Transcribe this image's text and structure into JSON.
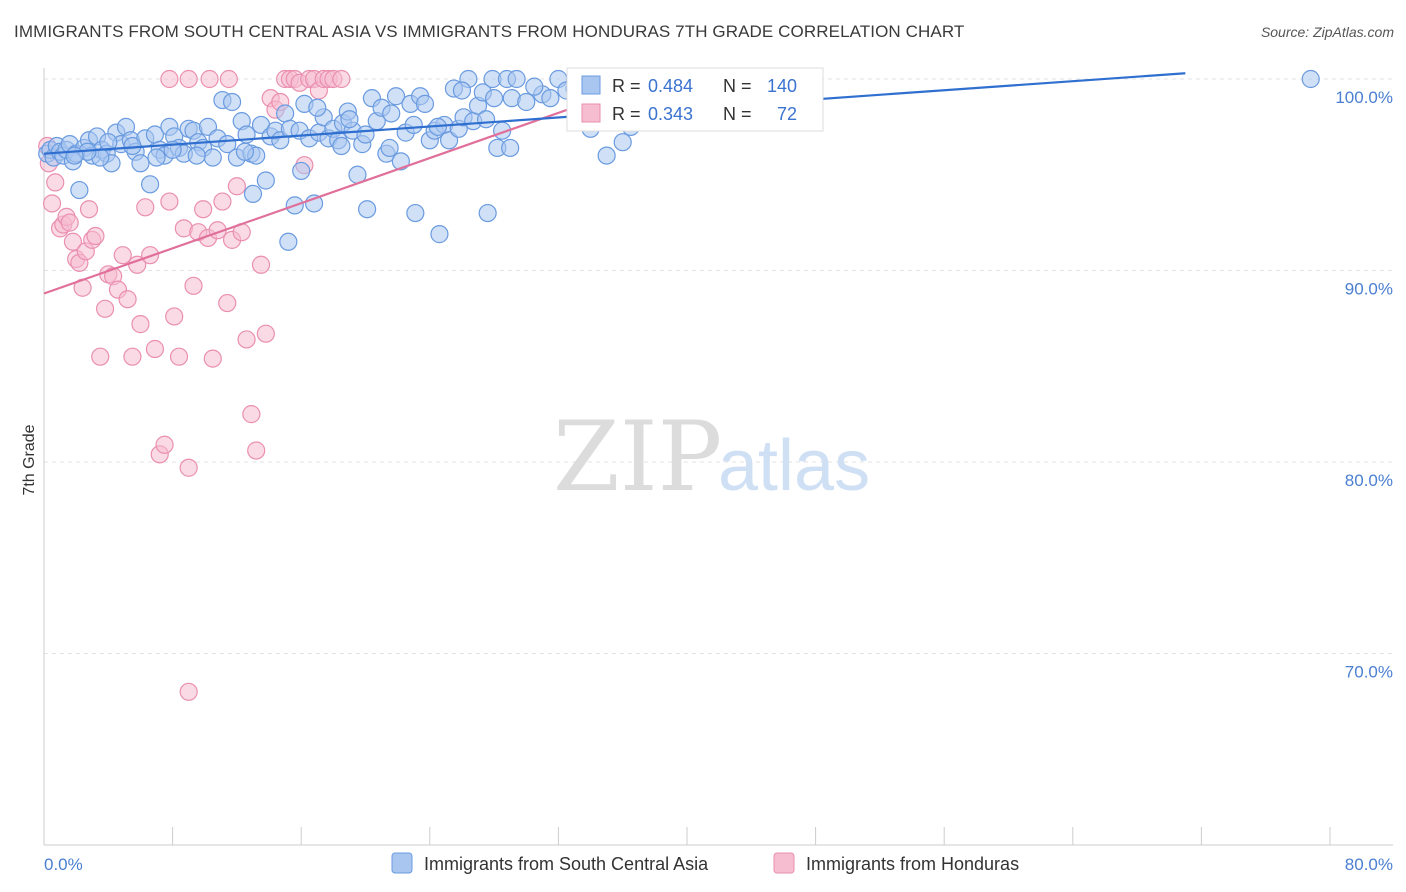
{
  "title": "IMMIGRANTS FROM SOUTH CENTRAL ASIA VS IMMIGRANTS FROM HONDURAS 7TH GRADE CORRELATION CHART",
  "source": "Source: ZipAtlas.com",
  "watermark": {
    "zip": "ZIP",
    "atlas": "atlas"
  },
  "colors": {
    "blue_fill": "#a9c6f0",
    "blue_stroke": "#6a9be0",
    "blue_line": "#2f6fcf",
    "pink_fill": "#f6bcd0",
    "pink_stroke": "#ea8fb0",
    "pink_line": "#e0709a",
    "axis_text": "#4a7fd1",
    "grid": "#e3e3e3"
  },
  "stats_box": [
    {
      "r_label": "R =",
      "r_value": "0.484",
      "n_label": "N =",
      "n_value": "140"
    },
    {
      "r_label": "R =",
      "r_value": "0.343",
      "n_label": "N =",
      "n_value": "72"
    }
  ],
  "chart_data": {
    "type": "scatter",
    "title": "IMMIGRANTS FROM SOUTH CENTRAL ASIA VS IMMIGRANTS FROM HONDURAS 7TH GRADE CORRELATION CHART",
    "xlabel": "",
    "ylabel": "7th Grade",
    "xlim": [
      0,
      80
    ],
    "ylim": [
      60,
      100
    ],
    "x_tick_labels": [
      "0.0%",
      "80.0%"
    ],
    "y_ticks": [
      100,
      90,
      80,
      70
    ],
    "y_tick_labels": [
      "100.0%",
      "90.0%",
      "80.0%",
      "70.0%"
    ],
    "grid": "horizontal dashed",
    "legend_position": "bottom",
    "series": [
      {
        "name": "Immigrants from South Central Asia",
        "color": "#6a9be0",
        "trend": {
          "x": [
            0,
            71
          ],
          "y": [
            96.1,
            100.3
          ]
        },
        "points": [
          [
            0.2,
            96.1
          ],
          [
            0.4,
            96.3
          ],
          [
            0.6,
            95.9
          ],
          [
            0.8,
            96.5
          ],
          [
            1.0,
            96.2
          ],
          [
            1.2,
            96.0
          ],
          [
            1.4,
            96.3
          ],
          [
            1.6,
            96.6
          ],
          [
            1.8,
            95.7
          ],
          [
            2.0,
            96.1
          ],
          [
            2.2,
            94.2
          ],
          [
            2.5,
            96.4
          ],
          [
            2.8,
            96.8
          ],
          [
            3.0,
            96.0
          ],
          [
            3.3,
            97.0
          ],
          [
            3.6,
            96.3
          ],
          [
            3.9,
            96.1
          ],
          [
            4.2,
            95.6
          ],
          [
            4.5,
            97.2
          ],
          [
            4.8,
            96.6
          ],
          [
            5.1,
            97.5
          ],
          [
            5.4,
            96.8
          ],
          [
            5.7,
            96.2
          ],
          [
            6.0,
            95.6
          ],
          [
            6.3,
            96.9
          ],
          [
            6.6,
            94.5
          ],
          [
            6.9,
            97.1
          ],
          [
            7.2,
            96.3
          ],
          [
            7.5,
            96.0
          ],
          [
            7.8,
            97.5
          ],
          [
            8.1,
            97.0
          ],
          [
            8.4,
            96.4
          ],
          [
            8.7,
            96.1
          ],
          [
            9.0,
            97.4
          ],
          [
            9.3,
            97.3
          ],
          [
            9.6,
            96.7
          ],
          [
            9.9,
            96.4
          ],
          [
            10.2,
            97.5
          ],
          [
            10.5,
            95.9
          ],
          [
            10.8,
            96.9
          ],
          [
            11.1,
            98.9
          ],
          [
            11.4,
            96.6
          ],
          [
            11.7,
            98.8
          ],
          [
            12.0,
            95.9
          ],
          [
            12.3,
            97.8
          ],
          [
            12.6,
            97.1
          ],
          [
            12.9,
            96.1
          ],
          [
            13.2,
            96.0
          ],
          [
            13.5,
            97.6
          ],
          [
            13.8,
            94.7
          ],
          [
            14.1,
            97.0
          ],
          [
            14.4,
            97.3
          ],
          [
            14.7,
            96.8
          ],
          [
            15.0,
            98.2
          ],
          [
            15.3,
            97.4
          ],
          [
            15.6,
            93.4
          ],
          [
            15.9,
            97.3
          ],
          [
            16.2,
            98.7
          ],
          [
            16.5,
            96.9
          ],
          [
            16.8,
            93.5
          ],
          [
            17.1,
            97.2
          ],
          [
            17.4,
            98.0
          ],
          [
            17.7,
            96.9
          ],
          [
            18.0,
            97.4
          ],
          [
            18.3,
            96.8
          ],
          [
            18.6,
            97.7
          ],
          [
            18.9,
            98.3
          ],
          [
            19.2,
            97.3
          ],
          [
            19.5,
            95.0
          ],
          [
            19.8,
            96.6
          ],
          [
            20.1,
            93.2
          ],
          [
            20.4,
            99.0
          ],
          [
            20.7,
            97.8
          ],
          [
            21.0,
            98.5
          ],
          [
            21.3,
            96.1
          ],
          [
            21.6,
            98.2
          ],
          [
            21.9,
            99.1
          ],
          [
            22.2,
            95.7
          ],
          [
            22.5,
            97.2
          ],
          [
            22.8,
            98.7
          ],
          [
            23.1,
            93.0
          ],
          [
            23.4,
            99.1
          ],
          [
            23.7,
            98.7
          ],
          [
            24.0,
            96.8
          ],
          [
            24.3,
            97.3
          ],
          [
            24.6,
            91.9
          ],
          [
            24.9,
            97.6
          ],
          [
            25.2,
            96.8
          ],
          [
            25.5,
            99.5
          ],
          [
            25.8,
            97.4
          ],
          [
            26.1,
            98.0
          ],
          [
            26.4,
            100.0
          ],
          [
            26.7,
            97.8
          ],
          [
            27.0,
            98.6
          ],
          [
            27.3,
            99.3
          ],
          [
            27.6,
            93.0
          ],
          [
            27.9,
            100.0
          ],
          [
            28.2,
            96.4
          ],
          [
            28.5,
            97.3
          ],
          [
            28.8,
            100.0
          ],
          [
            29.1,
            99.0
          ],
          [
            29.4,
            100.0
          ],
          [
            30.0,
            98.8
          ],
          [
            31.0,
            99.2
          ],
          [
            32.0,
            100.0
          ],
          [
            33.0,
            99.5
          ],
          [
            34.0,
            97.4
          ],
          [
            35.0,
            96.0
          ],
          [
            36.0,
            96.7
          ],
          [
            37.0,
            100.0
          ],
          [
            12.5,
            96.2
          ],
          [
            13.0,
            94.0
          ],
          [
            9.5,
            96.0
          ],
          [
            8.0,
            96.3
          ],
          [
            7.0,
            95.9
          ],
          [
            5.5,
            96.5
          ],
          [
            4.0,
            96.7
          ],
          [
            3.5,
            95.9
          ],
          [
            2.7,
            96.2
          ],
          [
            1.9,
            96.0
          ],
          [
            15.2,
            91.5
          ],
          [
            16.0,
            95.2
          ],
          [
            17.0,
            98.5
          ],
          [
            18.5,
            96.5
          ],
          [
            19.0,
            97.9
          ],
          [
            20.0,
            97.1
          ],
          [
            21.5,
            96.4
          ],
          [
            23.0,
            97.6
          ],
          [
            24.5,
            97.5
          ],
          [
            26.0,
            99.4
          ],
          [
            27.5,
            97.9
          ],
          [
            28.0,
            99.0
          ],
          [
            29.0,
            96.4
          ],
          [
            30.5,
            99.6
          ],
          [
            31.5,
            99.0
          ],
          [
            32.5,
            99.4
          ],
          [
            33.5,
            99.8
          ],
          [
            34.5,
            98.5
          ],
          [
            36.5,
            97.5
          ],
          [
            78.8,
            100.0
          ]
        ]
      },
      {
        "name": "Immigrants from Honduras",
        "color": "#ea8fb0",
        "trend": {
          "x": [
            0,
            38
          ],
          "y": [
            88.8,
            100.0
          ]
        },
        "points": [
          [
            0.2,
            96.5
          ],
          [
            0.3,
            95.6
          ],
          [
            0.5,
            93.5
          ],
          [
            0.7,
            94.6
          ],
          [
            1.0,
            92.2
          ],
          [
            1.2,
            92.4
          ],
          [
            1.4,
            92.8
          ],
          [
            1.6,
            92.5
          ],
          [
            1.8,
            91.5
          ],
          [
            2.0,
            90.6
          ],
          [
            2.2,
            90.4
          ],
          [
            2.4,
            89.1
          ],
          [
            2.6,
            91.0
          ],
          [
            2.8,
            93.2
          ],
          [
            3.0,
            91.6
          ],
          [
            3.2,
            91.8
          ],
          [
            3.5,
            85.5
          ],
          [
            3.8,
            88.0
          ],
          [
            4.0,
            89.8
          ],
          [
            4.3,
            89.7
          ],
          [
            4.6,
            89.0
          ],
          [
            4.9,
            90.8
          ],
          [
            5.2,
            88.5
          ],
          [
            5.5,
            85.5
          ],
          [
            5.8,
            90.3
          ],
          [
            6.0,
            87.2
          ],
          [
            6.3,
            93.3
          ],
          [
            6.6,
            90.8
          ],
          [
            6.9,
            85.9
          ],
          [
            7.2,
            80.4
          ],
          [
            7.5,
            80.9
          ],
          [
            7.8,
            93.6
          ],
          [
            8.1,
            87.6
          ],
          [
            8.4,
            85.5
          ],
          [
            8.7,
            92.2
          ],
          [
            9.0,
            79.7
          ],
          [
            9.3,
            89.2
          ],
          [
            9.6,
            92.0
          ],
          [
            9.9,
            93.2
          ],
          [
            10.2,
            91.7
          ],
          [
            10.5,
            85.4
          ],
          [
            10.8,
            92.1
          ],
          [
            11.1,
            93.6
          ],
          [
            11.4,
            88.3
          ],
          [
            11.7,
            91.6
          ],
          [
            12.0,
            94.4
          ],
          [
            12.3,
            92.0
          ],
          [
            12.6,
            86.4
          ],
          [
            12.9,
            82.5
          ],
          [
            13.2,
            80.6
          ],
          [
            13.5,
            90.3
          ],
          [
            13.8,
            86.7
          ],
          [
            14.1,
            99.0
          ],
          [
            14.4,
            98.4
          ],
          [
            14.7,
            98.8
          ],
          [
            15.0,
            100.0
          ],
          [
            15.3,
            100.0
          ],
          [
            15.6,
            100.0
          ],
          [
            15.9,
            99.8
          ],
          [
            16.2,
            95.5
          ],
          [
            16.5,
            100.0
          ],
          [
            16.8,
            100.0
          ],
          [
            17.1,
            99.4
          ],
          [
            17.4,
            100.0
          ],
          [
            17.7,
            100.0
          ],
          [
            18.0,
            100.0
          ],
          [
            7.8,
            100.0
          ],
          [
            9.0,
            100.0
          ],
          [
            10.3,
            100.0
          ],
          [
            11.5,
            100.0
          ],
          [
            18.5,
            100.0
          ],
          [
            9.0,
            68.0
          ]
        ]
      }
    ]
  },
  "legend": [
    {
      "label": "Immigrants from South Central Asia"
    },
    {
      "label": "Immigrants from Honduras"
    }
  ]
}
